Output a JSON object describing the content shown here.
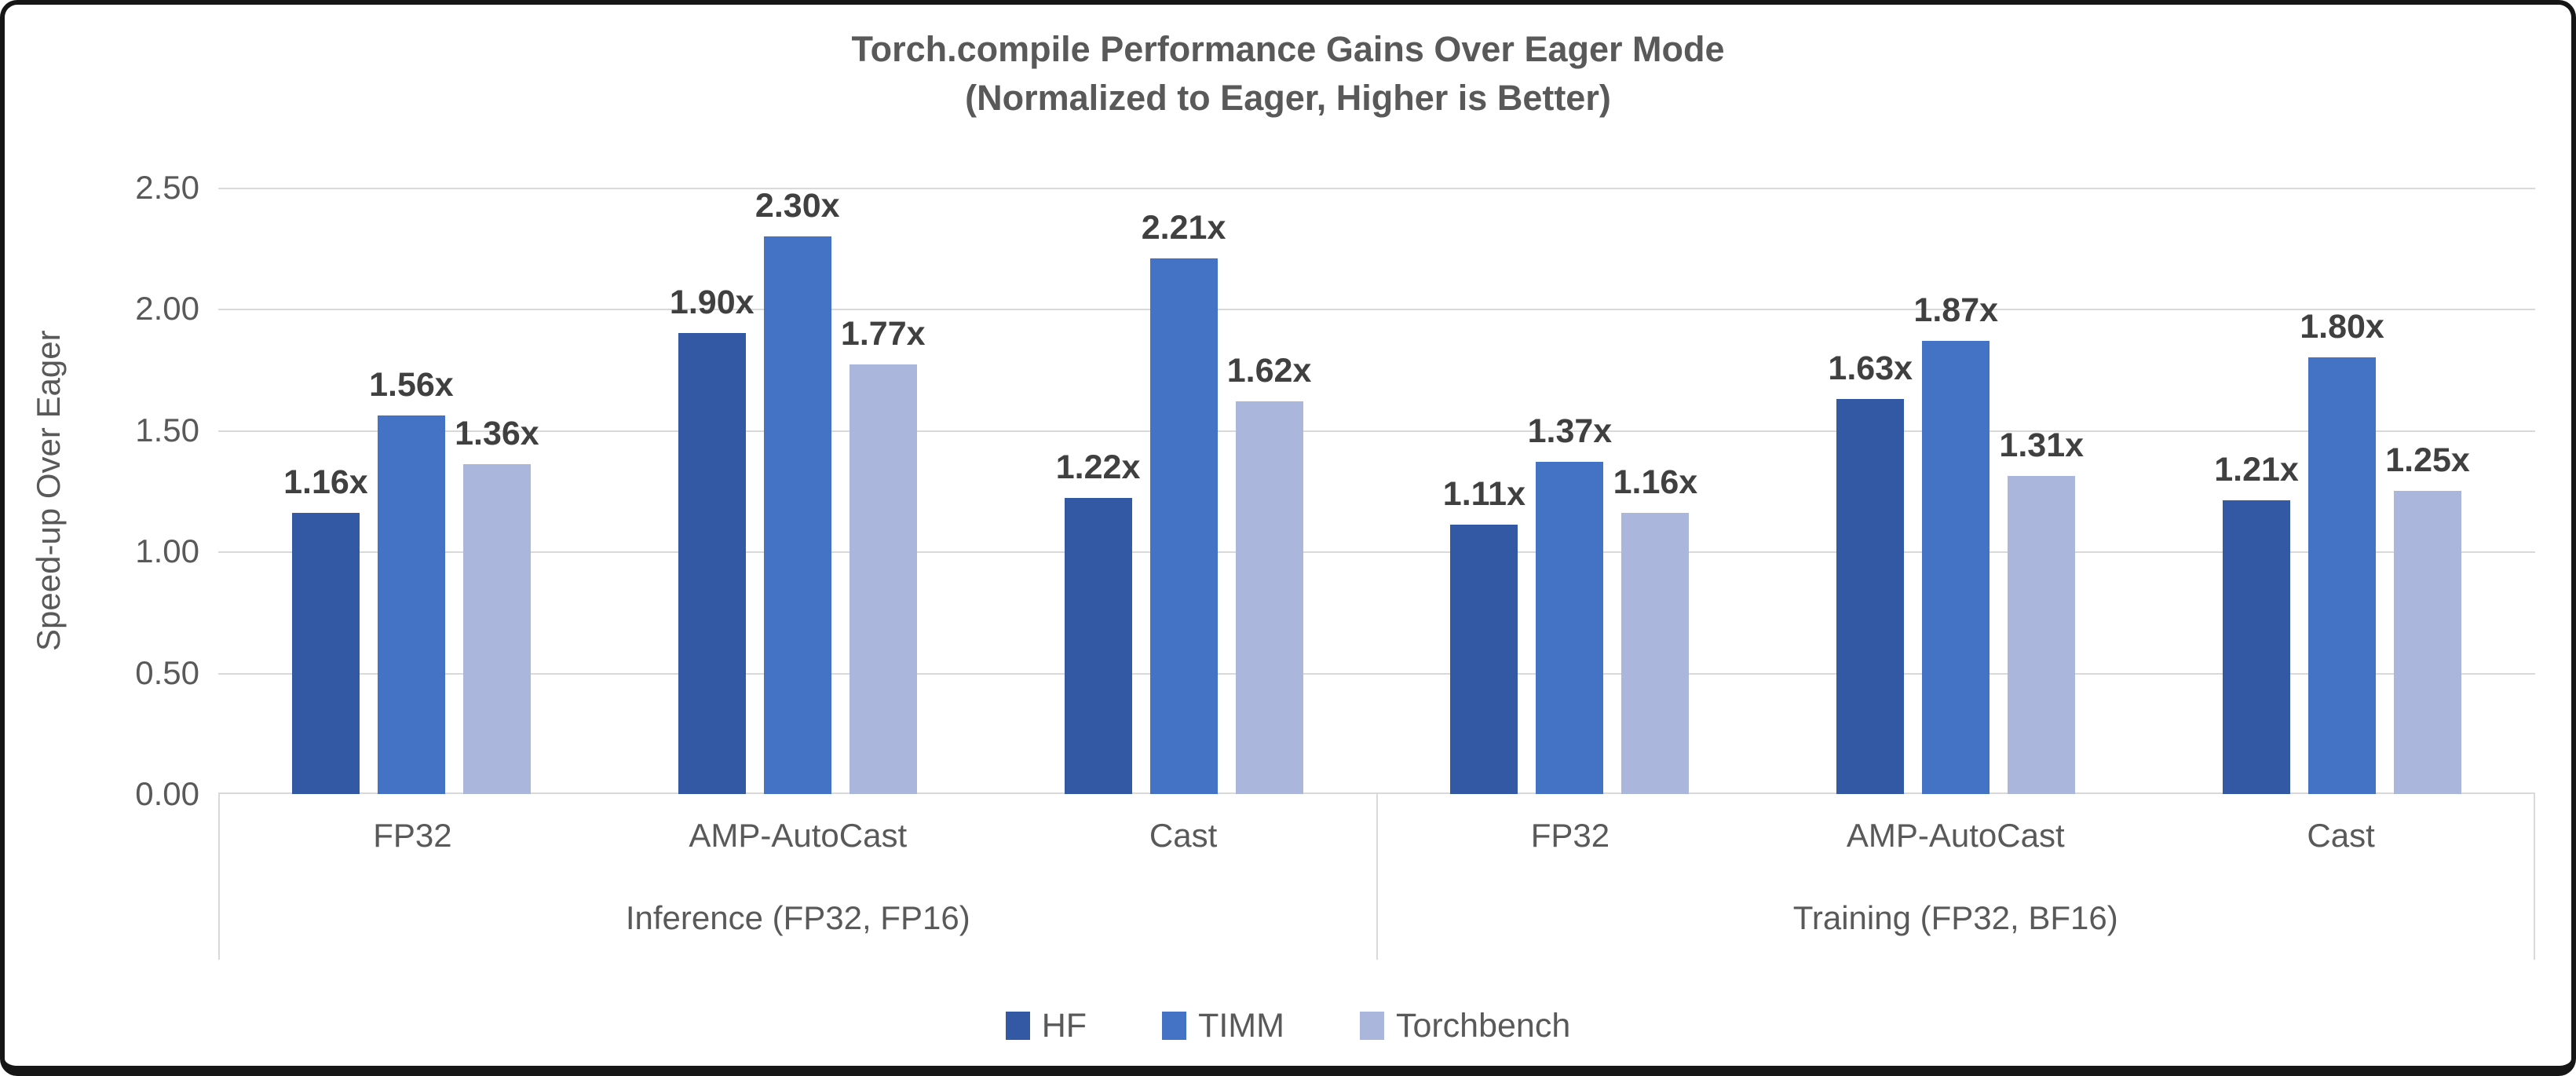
{
  "chart_data": {
    "type": "bar",
    "title": "Torch.compile Performance Gains Over Eager Mode",
    "subtitle": "(Normalized to Eager, Higher is Better)",
    "ylabel": "Speed-up Over Eager",
    "ylim": [
      0,
      2.5
    ],
    "ytick_labels": [
      "2.50",
      "2.00",
      "1.50",
      "1.00",
      "0.50",
      "0.00"
    ],
    "grid": true,
    "legend_position": "bottom",
    "series": [
      {
        "name": "HF",
        "color": "#3459A4"
      },
      {
        "name": "TIMM",
        "color": "#4472C4"
      },
      {
        "name": "Torchbench",
        "color": "#AAB6DC"
      }
    ],
    "supergroups": [
      {
        "label": "Inference (FP32, FP16)",
        "categories": [
          {
            "label": "FP32",
            "values": [
              1.16,
              1.56,
              1.36
            ],
            "value_labels": [
              "1.16x",
              "1.56x",
              "1.36x"
            ]
          },
          {
            "label": "AMP-AutoCast",
            "values": [
              1.9,
              2.3,
              1.77
            ],
            "value_labels": [
              "1.90x",
              "2.30x",
              "1.77x"
            ]
          },
          {
            "label": "Cast",
            "values": [
              1.22,
              2.21,
              1.62
            ],
            "value_labels": [
              "1.22x",
              "2.21x",
              "1.62x"
            ]
          }
        ]
      },
      {
        "label": "Training (FP32, BF16)",
        "categories": [
          {
            "label": "FP32",
            "values": [
              1.11,
              1.37,
              1.16
            ],
            "value_labels": [
              "1.11x",
              "1.37x",
              "1.16x"
            ]
          },
          {
            "label": "AMP-AutoCast",
            "values": [
              1.63,
              1.87,
              1.31
            ],
            "value_labels": [
              "1.63x",
              "1.87x",
              "1.31x"
            ]
          },
          {
            "label": "Cast",
            "values": [
              1.21,
              1.8,
              1.25
            ],
            "value_labels": [
              "1.21x",
              "1.80x",
              "1.25x"
            ]
          }
        ]
      }
    ],
    "colors": {
      "axis_text": "#595959",
      "data_label": "#404040",
      "gridline": "#D9D9D9",
      "frame_border": "#161616",
      "background": "#ffffff"
    }
  }
}
